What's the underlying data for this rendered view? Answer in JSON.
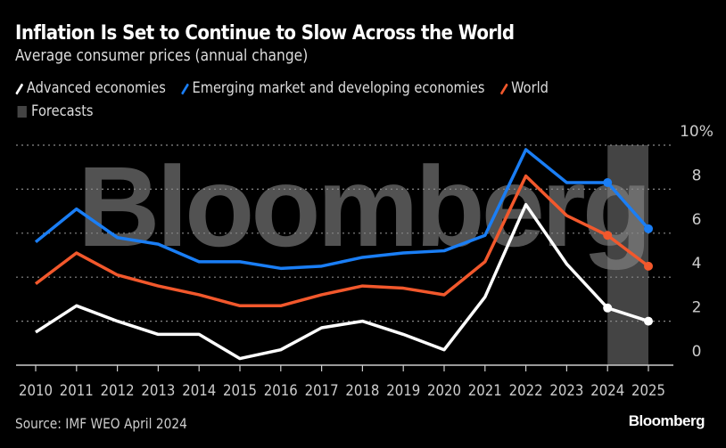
{
  "chart_data": {
    "type": "line",
    "title": "Inflation Is Set to Continue to Slow Across the World",
    "subtitle": "Average consumer prices (annual change)",
    "x": [
      2010,
      2011,
      2012,
      2013,
      2014,
      2015,
      2016,
      2017,
      2018,
      2019,
      2020,
      2021,
      2022,
      2023,
      2024,
      2025
    ],
    "x_tick_labels": [
      "2010",
      "2011",
      "2012",
      "2013",
      "2014",
      "2015",
      "2016",
      "2017",
      "2018",
      "2019",
      "2020",
      "2021",
      "2022",
      "2023",
      "2024",
      "2025"
    ],
    "y_tick_labels": [
      "0",
      "2",
      "4",
      "6",
      "8",
      "10%"
    ],
    "y_ticks": [
      0,
      2,
      4,
      6,
      8,
      10
    ],
    "ylim": [
      0,
      10
    ],
    "unit": "%",
    "grid": true,
    "legend_placement": "top",
    "forecast_range": [
      2024,
      2025
    ],
    "forecast_label": "Forecasts",
    "forecast_color": "#444444",
    "series": [
      {
        "name": "Advanced economies",
        "color": "#ffffff",
        "values": [
          1.5,
          2.7,
          2.0,
          1.4,
          1.4,
          0.3,
          0.7,
          1.7,
          2.0,
          1.4,
          0.7,
          3.1,
          7.3,
          4.6,
          2.6,
          2.0
        ]
      },
      {
        "name": "Emerging market and developing economies",
        "color": "#1a7ef5",
        "values": [
          5.6,
          7.1,
          5.8,
          5.5,
          4.7,
          4.7,
          4.4,
          4.5,
          4.9,
          5.1,
          5.2,
          5.9,
          9.8,
          8.3,
          8.3,
          6.2
        ]
      },
      {
        "name": "World",
        "color": "#f2582c",
        "values": [
          3.7,
          5.1,
          4.1,
          3.6,
          3.2,
          2.7,
          2.7,
          3.2,
          3.6,
          3.5,
          3.2,
          4.7,
          8.6,
          6.8,
          5.9,
          4.5
        ]
      }
    ],
    "source": "Source: IMF WEO April 2024",
    "watermark": "Bloomberg",
    "logo": "Bloomberg"
  }
}
